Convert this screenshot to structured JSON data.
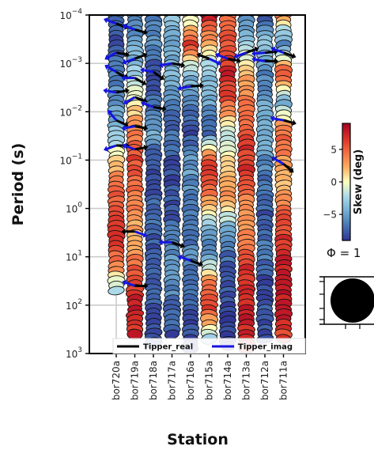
{
  "chart_data": {
    "type": "scatter",
    "subtype": "phase-tensor pseudosection with induction arrows",
    "title": "",
    "xlabel": "Station",
    "ylabel": "Period (s)",
    "y_scale": "log",
    "y_inverted": true,
    "ylim": [
      0.0001,
      1000
    ],
    "grid": true,
    "stations": [
      "bor720a",
      "bor719a",
      "bor718a",
      "bor717a",
      "bor716a",
      "bor715a",
      "bor714a",
      "bor713a",
      "bor712a",
      "bor711a"
    ],
    "y_ticks": [
      {
        "base": "10",
        "exp": "−4"
      },
      {
        "base": "10",
        "exp": "−3"
      },
      {
        "base": "10",
        "exp": "−2"
      },
      {
        "base": "10",
        "exp": "−1"
      },
      {
        "base": "10",
        "exp": "0"
      },
      {
        "base": "10",
        "exp": "1"
      },
      {
        "base": "10",
        "exp": "2"
      },
      {
        "base": "10",
        "exp": "3"
      }
    ],
    "colorbar": {
      "label": "Skew (deg)",
      "range": [
        -9,
        9
      ],
      "ticks": [
        "5",
        "0",
        "−5"
      ],
      "colormap": "RdYlBu_r"
    },
    "phi_scale_label": "Φ = 1",
    "legend": [
      {
        "label": "Tipper_real",
        "color": "#000000"
      },
      {
        "label": "Tipper_imag",
        "color": "#1515e0"
      }
    ],
    "columns": [
      {
        "station": "bor720a",
        "period_range": [
          0.0001,
          50
        ],
        "skew_profile": [
          -7,
          -8,
          -6,
          -6,
          -5,
          -2,
          2,
          5,
          6,
          7,
          4,
          -3
        ]
      },
      {
        "station": "bor719a",
        "period_range": [
          0.0001,
          400
        ],
        "skew_profile": [
          -6,
          -5,
          -3,
          0,
          4,
          6,
          5,
          3,
          2,
          6,
          8,
          7
        ]
      },
      {
        "station": "bor718a",
        "period_range": [
          0.0001,
          600
        ],
        "skew_profile": [
          -7,
          -6,
          -8,
          -7,
          -5,
          -8,
          -8,
          -7,
          -8,
          -8,
          -8,
          -8
        ]
      },
      {
        "station": "bor717a",
        "period_range": [
          0.0001,
          400
        ],
        "skew_profile": [
          -3,
          -5,
          -4,
          -6,
          -7,
          -8,
          -8,
          -8,
          -6,
          -5,
          -7,
          -8
        ]
      },
      {
        "station": "bor716a",
        "period_range": [
          0.0001,
          800
        ],
        "skew_profile": [
          -2,
          6,
          -4,
          -6,
          -8,
          -5,
          -6,
          -7,
          -6,
          -7,
          -8,
          -9
        ]
      },
      {
        "station": "bor715a",
        "period_range": [
          0.0001,
          500
        ],
        "skew_profile": [
          8,
          2,
          -3,
          -5,
          -8,
          6,
          5,
          -2,
          -7,
          3,
          6,
          -2
        ]
      },
      {
        "station": "bor714a",
        "period_range": [
          0.0001,
          700
        ],
        "skew_profile": [
          4,
          6,
          7,
          5,
          -2,
          2,
          3,
          -3,
          -7,
          -8,
          -9,
          -9
        ]
      },
      {
        "station": "bor713a",
        "period_range": [
          0.0001,
          800
        ],
        "skew_profile": [
          -6,
          -3,
          2,
          4,
          6,
          7,
          4,
          3,
          6,
          7,
          8,
          6
        ]
      },
      {
        "station": "bor712a",
        "period_range": [
          0.0001,
          500
        ],
        "skew_profile": [
          -8,
          -3,
          -6,
          -5,
          -4,
          -6,
          -7,
          -8,
          -6,
          -8,
          -8,
          -8
        ]
      },
      {
        "station": "bor711a",
        "period_range": [
          0.0001,
          500
        ],
        "skew_profile": [
          4,
          -6,
          6,
          -4,
          5,
          3,
          2,
          6,
          7,
          8,
          8,
          6
        ]
      }
    ],
    "arrows": [
      {
        "station": "bor720a",
        "period": 0.00015,
        "real_deg": 20,
        "imag_deg": 200
      },
      {
        "station": "bor720a",
        "period": 0.0006,
        "real_deg": 10,
        "imag_deg": 150
      },
      {
        "station": "bor720a",
        "period": 0.0015,
        "real_deg": 30,
        "imag_deg": 210
      },
      {
        "station": "bor720a",
        "period": 0.004,
        "real_deg": 350,
        "imag_deg": 190
      },
      {
        "station": "bor720a",
        "period": 0.015,
        "real_deg": 25,
        "imag_deg": 230
      },
      {
        "station": "bor720a",
        "period": 0.05,
        "real_deg": 0,
        "imag_deg": 160
      },
      {
        "station": "bor719a",
        "period": 0.0002,
        "real_deg": 15,
        "imag_deg": 200
      },
      {
        "station": "bor719a",
        "period": 0.0008,
        "real_deg": 340,
        "imag_deg": 160
      },
      {
        "station": "bor719a",
        "period": 0.002,
        "real_deg": 30,
        "imag_deg": 180
      },
      {
        "station": "bor719a",
        "period": 0.005,
        "real_deg": 20,
        "imag_deg": 150
      },
      {
        "station": "bor719a",
        "period": 0.02,
        "real_deg": 10,
        "imag_deg": 170
      },
      {
        "station": "bor719a",
        "period": 0.06,
        "real_deg": 350,
        "imag_deg": 200
      },
      {
        "station": "bor719a",
        "period": 3,
        "real_deg": 180,
        "imag_deg": 20
      },
      {
        "station": "bor719a",
        "period": 40,
        "real_deg": 0,
        "imag_deg": 200
      },
      {
        "station": "bor718a",
        "period": 0.0015,
        "real_deg": 35,
        "imag_deg": 190
      },
      {
        "station": "bor718a",
        "period": 0.008,
        "real_deg": 10,
        "imag_deg": 200
      },
      {
        "station": "bor717a",
        "period": 0.001,
        "real_deg": 10,
        "imag_deg": 170
      },
      {
        "station": "bor717a",
        "period": 5,
        "real_deg": 20,
        "imag_deg": 180
      },
      {
        "station": "bor716a",
        "period": 0.003,
        "real_deg": 355,
        "imag_deg": 170
      },
      {
        "station": "bor716a",
        "period": 12,
        "real_deg": 20,
        "imag_deg": 200
      },
      {
        "station": "bor715a",
        "period": 0.0008,
        "real_deg": 200,
        "imag_deg": 25
      },
      {
        "station": "bor714a",
        "period": 0.0008,
        "real_deg": 10,
        "imag_deg": 200
      },
      {
        "station": "bor713a",
        "period": 0.0006,
        "real_deg": 340,
        "imag_deg": 160
      },
      {
        "station": "bor712a",
        "period": 0.0006,
        "real_deg": 355,
        "imag_deg": 175
      },
      {
        "station": "bor712a",
        "period": 0.0009,
        "real_deg": 0,
        "imag_deg": 190
      },
      {
        "station": "bor711a",
        "period": 0.0006,
        "real_deg": 20,
        "imag_deg": 200
      },
      {
        "station": "bor711a",
        "period": 0.015,
        "real_deg": 15,
        "imag_deg": 190
      },
      {
        "station": "bor711a",
        "period": 0.12,
        "real_deg": 40,
        "imag_deg": 210
      }
    ]
  }
}
